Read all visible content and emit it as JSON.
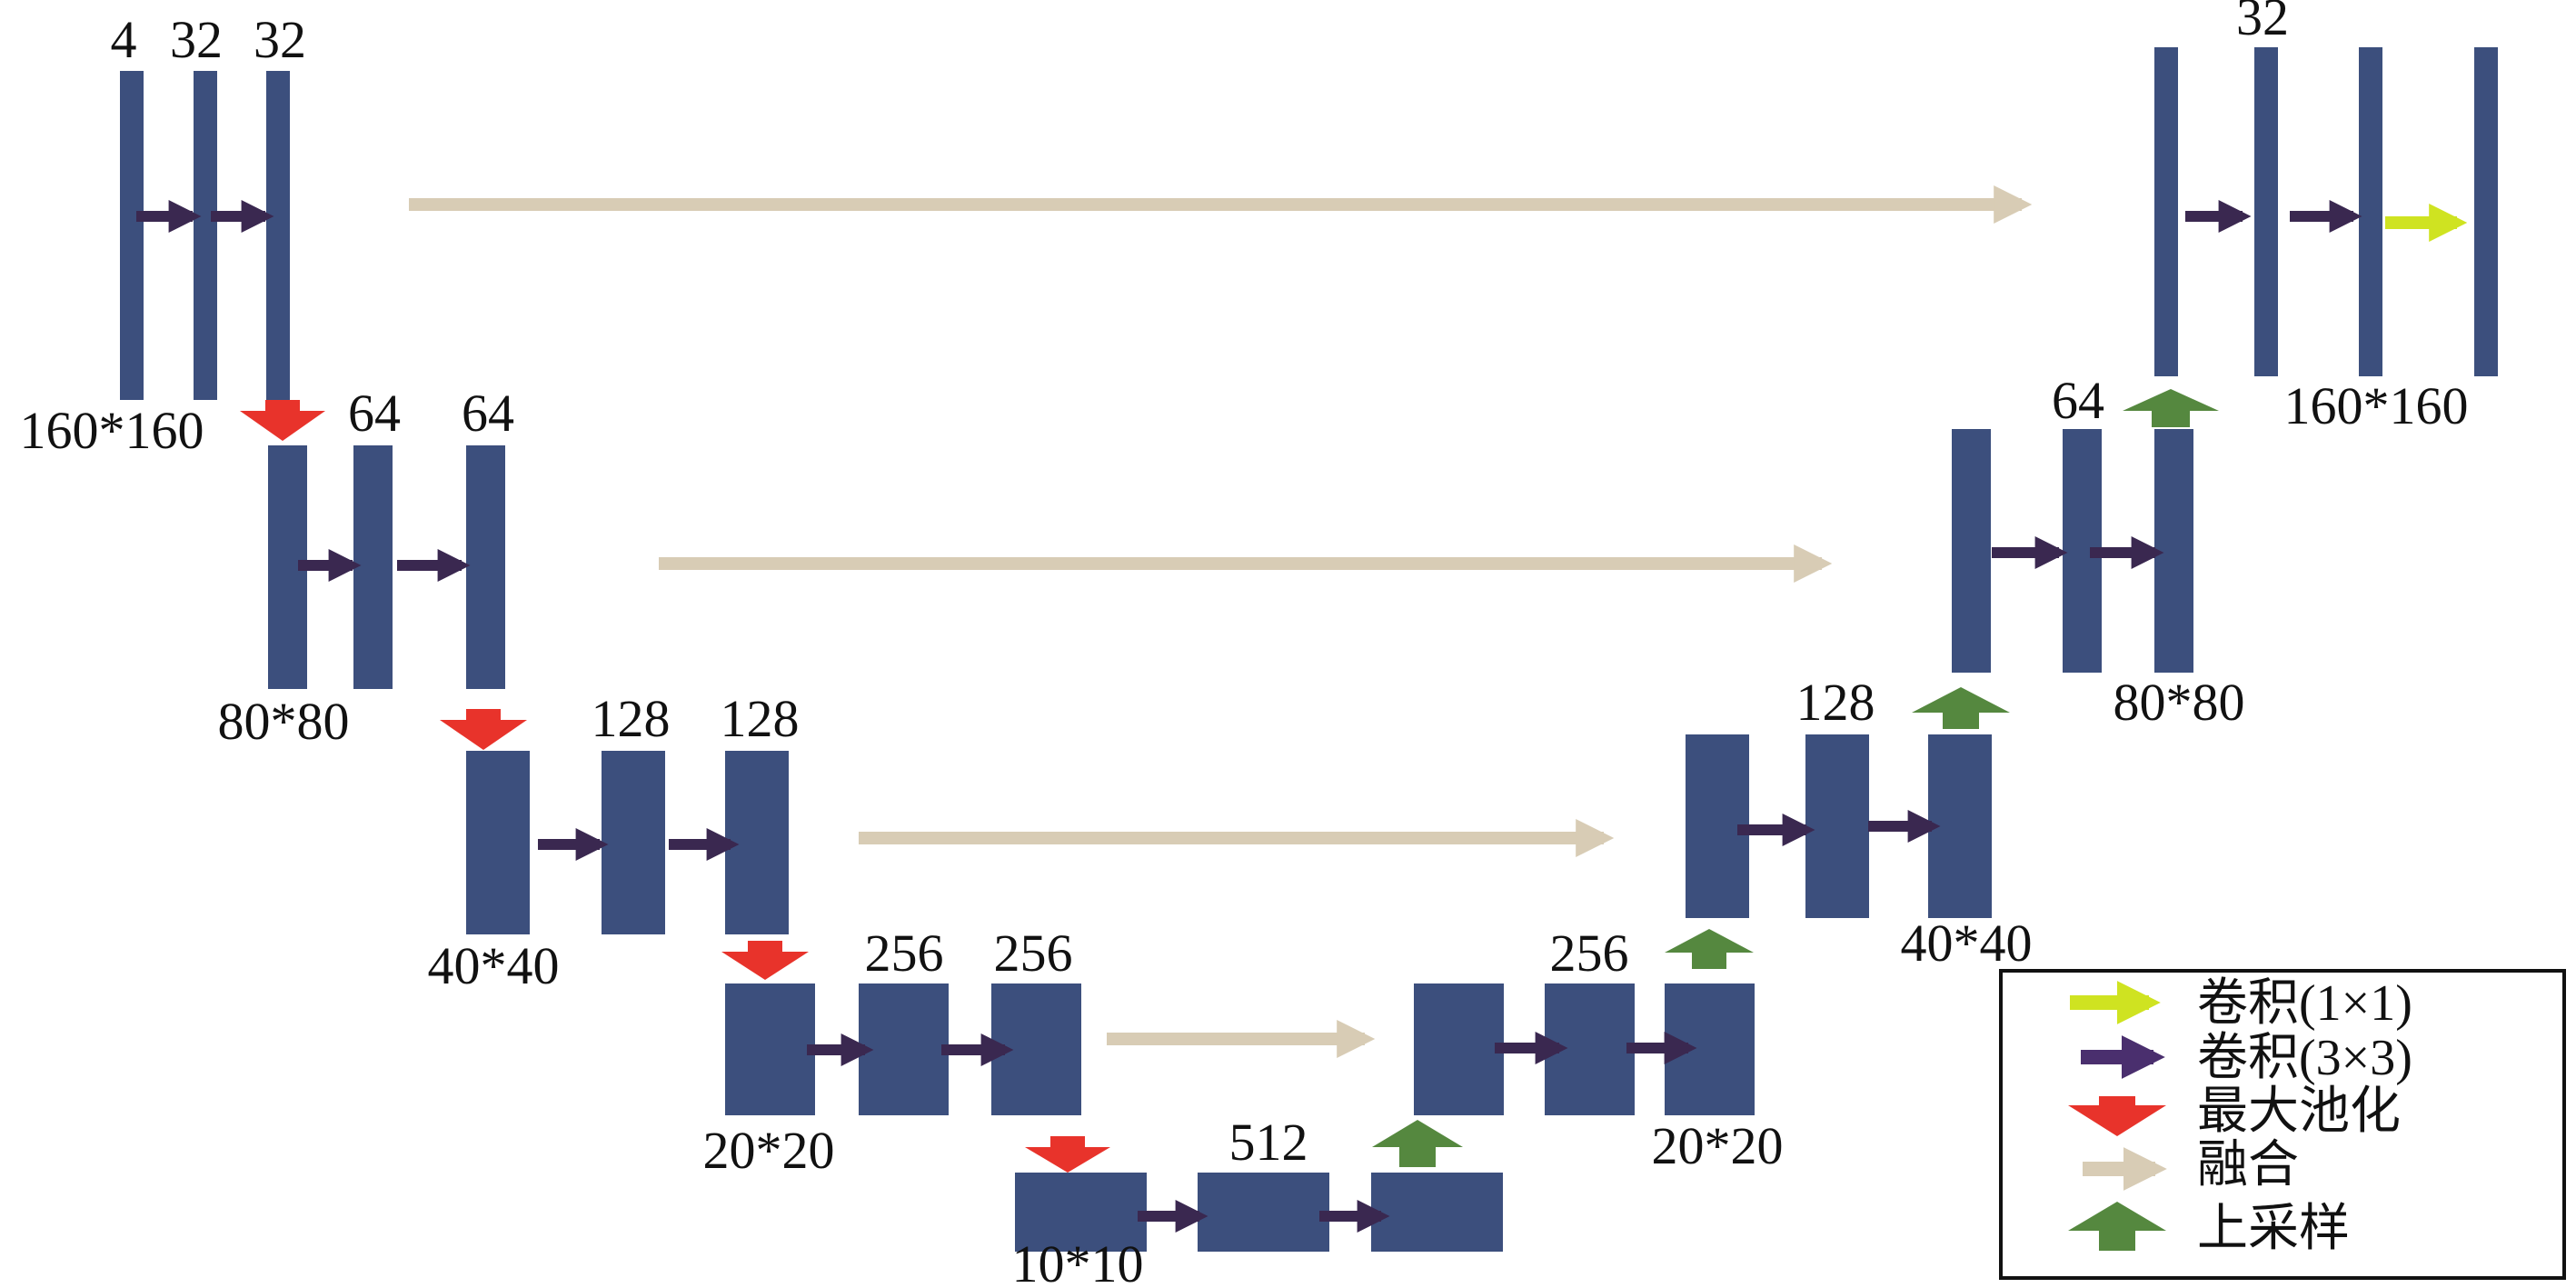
{
  "colors": {
    "block": "#3c4f7d",
    "conv3x3": "#3a2850",
    "conv1x1": "#cfe321",
    "maxpool": "#e8332b",
    "fusion": "#d8ccb5",
    "upsample": "#55883f"
  },
  "encoder": {
    "level1": {
      "channels": [
        "4",
        "32",
        "32"
      ],
      "size": "160*160"
    },
    "level2": {
      "channels": [
        "64",
        "64"
      ],
      "size": "80*80"
    },
    "level3": {
      "channels": [
        "128",
        "128"
      ],
      "size": "40*40"
    },
    "level4": {
      "channels": [
        "256",
        "256"
      ],
      "size": "20*20"
    },
    "bottleneck": {
      "channels": [
        "512"
      ],
      "size": "10*10"
    }
  },
  "decoder": {
    "level4": {
      "channels": [
        "256"
      ],
      "size": "20*20"
    },
    "level3": {
      "channels": [
        "128"
      ],
      "size": "40*40"
    },
    "level2": {
      "channels": [
        "64"
      ],
      "size": "80*80"
    },
    "level1": {
      "channels": [
        "32"
      ],
      "size": "160*160"
    }
  },
  "legend": {
    "conv1x1": {
      "label": "卷积(1×1)",
      "icon": "yellow-arrow"
    },
    "conv3x3": {
      "label": "卷积(3×3)",
      "icon": "purple-arrow"
    },
    "maxpool": {
      "label": "最大池化",
      "icon": "red-down-arrow"
    },
    "fusion": {
      "label": "融合",
      "icon": "beige-arrow"
    },
    "upsample": {
      "label": "上采样",
      "icon": "green-up-arrow"
    }
  }
}
